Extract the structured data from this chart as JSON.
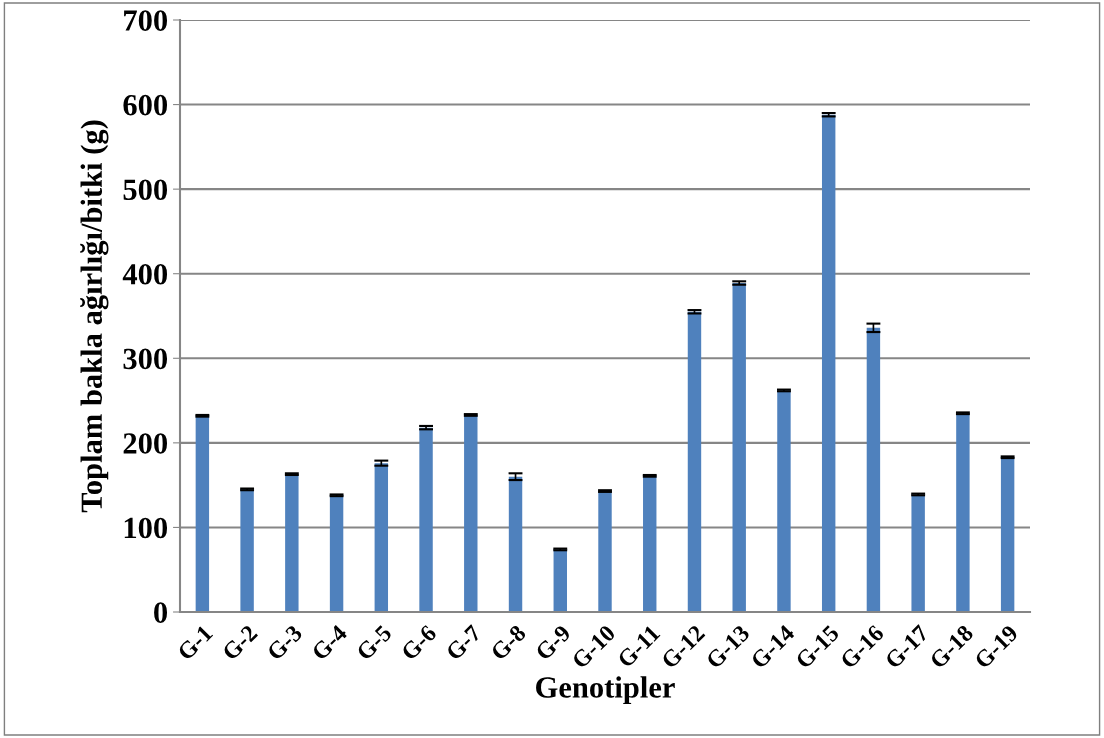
{
  "chart_data": {
    "type": "bar",
    "xlabel": "Genotipler",
    "ylabel": "Toplam bakla ağırlığı/bitki (g)",
    "categories": [
      "G-1",
      "G-2",
      "G-3",
      "G-4",
      "G-5",
      "G-6",
      "G-7",
      "G-8",
      "G-9",
      "G-10",
      "G-11",
      "G-12",
      "G-13",
      "G-14",
      "G-15",
      "G-16",
      "G-17",
      "G-18",
      "G-19"
    ],
    "values": [
      232,
      145,
      163,
      138,
      176,
      218,
      233,
      160,
      74,
      143,
      161,
      355,
      389,
      262,
      588,
      336,
      139,
      235,
      183
    ],
    "errors": [
      1,
      1,
      1,
      1,
      3,
      2,
      1,
      4,
      1,
      1,
      1,
      2,
      2,
      1,
      2,
      5,
      1,
      1,
      1
    ],
    "color": "#4f81bd",
    "ylim": [
      0,
      700
    ],
    "yticks": [
      0,
      100,
      200,
      300,
      400,
      500,
      600,
      700
    ],
    "grid": "y",
    "legend": false
  }
}
